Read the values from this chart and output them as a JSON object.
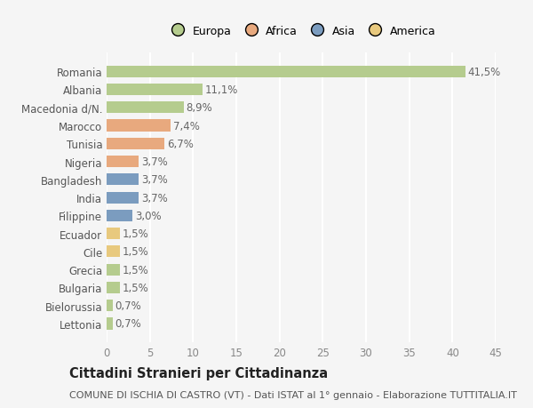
{
  "countries": [
    "Romania",
    "Albania",
    "Macedonia d/N.",
    "Marocco",
    "Tunisia",
    "Nigeria",
    "Bangladesh",
    "India",
    "Filippine",
    "Ecuador",
    "Cile",
    "Grecia",
    "Bulgaria",
    "Bielorussia",
    "Lettonia"
  ],
  "values": [
    41.5,
    11.1,
    8.9,
    7.4,
    6.7,
    3.7,
    3.7,
    3.7,
    3.0,
    1.5,
    1.5,
    1.5,
    1.5,
    0.7,
    0.7
  ],
  "labels": [
    "41,5%",
    "11,1%",
    "8,9%",
    "7,4%",
    "6,7%",
    "3,7%",
    "3,7%",
    "3,7%",
    "3,0%",
    "1,5%",
    "1,5%",
    "1,5%",
    "1,5%",
    "0,7%",
    "0,7%"
  ],
  "colors": [
    "#b5cc8e",
    "#b5cc8e",
    "#b5cc8e",
    "#e8a97e",
    "#e8a97e",
    "#e8a97e",
    "#7b9cbf",
    "#7b9cbf",
    "#7b9cbf",
    "#e8c97e",
    "#e8c97e",
    "#b5cc8e",
    "#b5cc8e",
    "#b5cc8e",
    "#b5cc8e"
  ],
  "legend_labels": [
    "Europa",
    "Africa",
    "Asia",
    "America"
  ],
  "legend_colors": [
    "#b5cc8e",
    "#e8a97e",
    "#7b9cbf",
    "#e8c97e"
  ],
  "title": "Cittadini Stranieri per Cittadinanza",
  "subtitle": "COMUNE DI ISCHIA DI CASTRO (VT) - Dati ISTAT al 1° gennaio - Elaborazione TUTTITALIA.IT",
  "xlim": [
    0,
    45
  ],
  "xticks": [
    0,
    5,
    10,
    15,
    20,
    25,
    30,
    35,
    40,
    45
  ],
  "background_color": "#f5f5f5",
  "grid_color": "#ffffff",
  "bar_height": 0.65,
  "label_fontsize": 8.5,
  "tick_fontsize": 8.5,
  "title_fontsize": 10.5,
  "subtitle_fontsize": 8
}
